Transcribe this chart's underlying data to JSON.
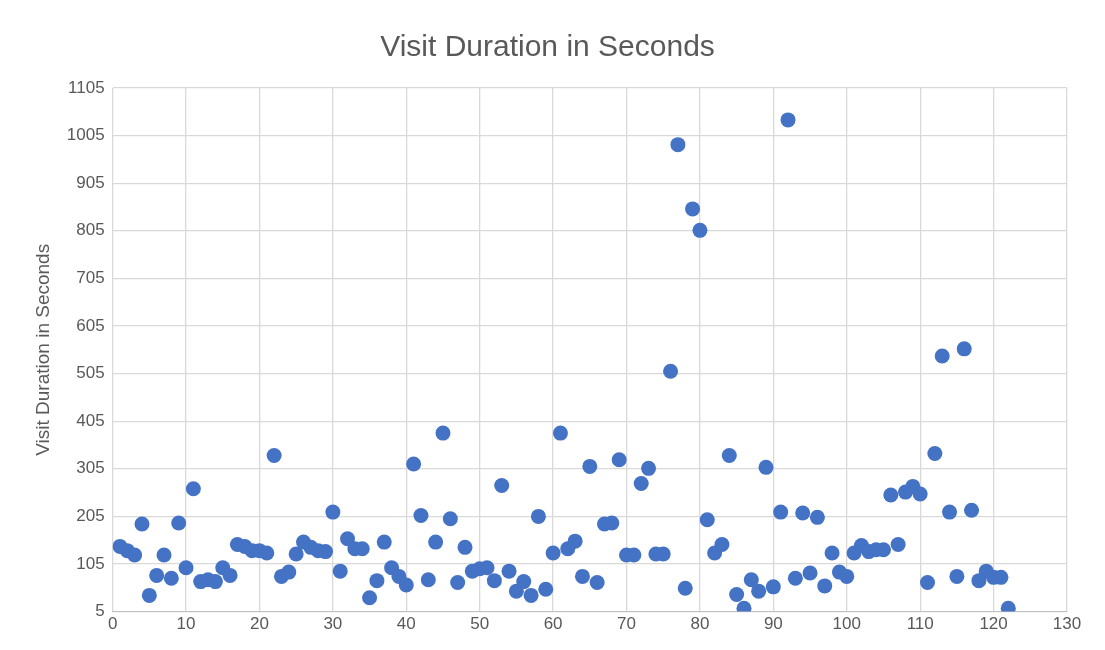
{
  "chart_data": {
    "type": "scatter",
    "title": "Visit Duration in Seconds",
    "ylabel": "Visit Duration in Seconds",
    "x": [
      1,
      2,
      3,
      4,
      5,
      6,
      7,
      8,
      9,
      10,
      11,
      12,
      13,
      14,
      15,
      16,
      17,
      18,
      19,
      20,
      21,
      22,
      23,
      24,
      25,
      26,
      27,
      28,
      29,
      30,
      31,
      32,
      33,
      34,
      35,
      36,
      37,
      38,
      39,
      40,
      41,
      42,
      43,
      44,
      45,
      46,
      47,
      48,
      49,
      50,
      51,
      52,
      53,
      54,
      55,
      56,
      57,
      58,
      59,
      60,
      61,
      62,
      63,
      64,
      65,
      66,
      67,
      68,
      69,
      70,
      71,
      72,
      73,
      74,
      75,
      76,
      77,
      78,
      79,
      80,
      81,
      82,
      83,
      84,
      85,
      86,
      87,
      88,
      89,
      90,
      91,
      92,
      93,
      94,
      95,
      96,
      97,
      98,
      99,
      100,
      101,
      102,
      103,
      104,
      105,
      106,
      107,
      108,
      109,
      110,
      111,
      112,
      113,
      114,
      115,
      116,
      117,
      118,
      119,
      120,
      121,
      122
    ],
    "series": [
      {
        "color": "#4472c4",
        "values": [
          142,
          133,
          124,
          189,
          39,
          81,
          124,
          75,
          191,
          97,
          263,
          68,
          72,
          68,
          97,
          81,
          146,
          142,
          133,
          133,
          128,
          333,
          79,
          88,
          126,
          151,
          140,
          133,
          131,
          214,
          90,
          158,
          137,
          137,
          34,
          70,
          151,
          97,
          79,
          61,
          315,
          207,
          72,
          151,
          380,
          200,
          66,
          140,
          90,
          95,
          97,
          70,
          270,
          90,
          48,
          68,
          39,
          205,
          52,
          128,
          380,
          137,
          153,
          79,
          310,
          66,
          189,
          191,
          324,
          124,
          124,
          274,
          306,
          126,
          126,
          510,
          986,
          54,
          851,
          806,
          198,
          128,
          146,
          333,
          41,
          12,
          72,
          48,
          308,
          57,
          214,
          1038,
          75,
          212,
          86,
          203,
          59,
          128,
          88,
          79,
          128,
          144,
          131,
          135,
          135,
          250,
          146,
          256,
          268,
          252,
          66,
          337,
          542,
          214,
          79,
          557,
          218,
          70,
          90,
          77,
          77,
          12
        ]
      }
    ],
    "xlim": [
      0,
      130
    ],
    "xticks": [
      0,
      10,
      20,
      30,
      40,
      50,
      60,
      70,
      80,
      90,
      100,
      110,
      120,
      130
    ],
    "ylim": [
      5,
      1105
    ],
    "yticks": [
      5,
      105,
      205,
      305,
      405,
      505,
      605,
      705,
      805,
      905,
      1005,
      1105
    ],
    "grid": true,
    "legend": false,
    "marker": "circle"
  }
}
